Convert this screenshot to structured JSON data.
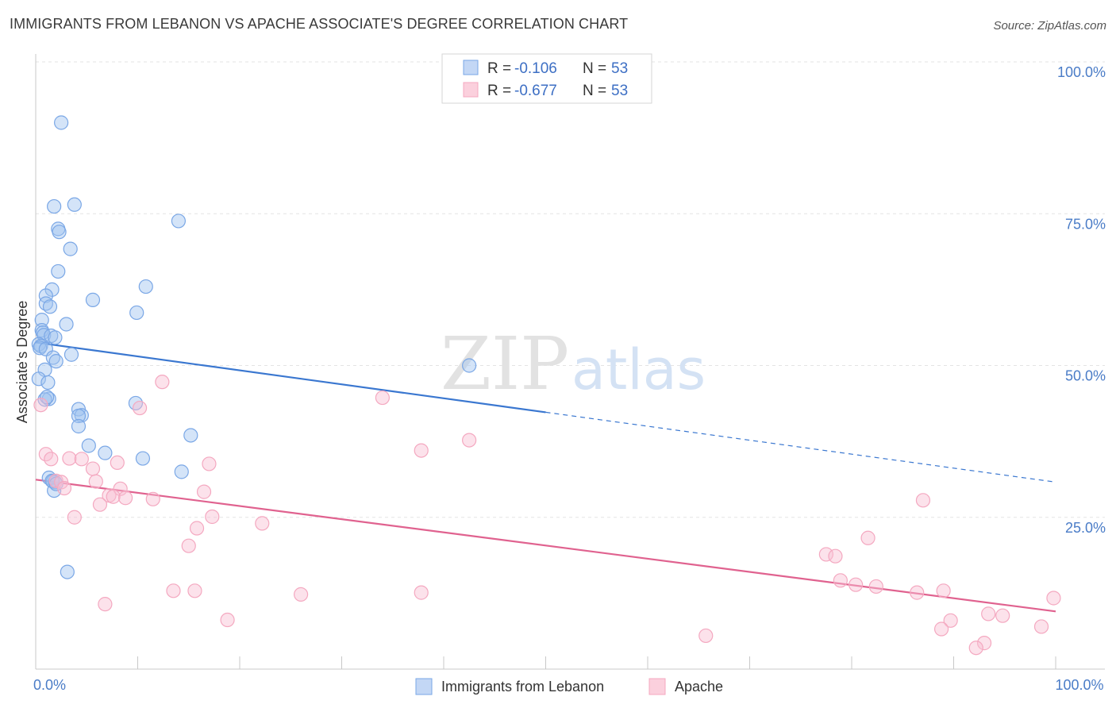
{
  "title": "IMMIGRANTS FROM LEBANON VS APACHE ASSOCIATE'S DEGREE CORRELATION CHART",
  "source": "Source: ZipAtlas.com",
  "watermark": {
    "zip": "ZIP",
    "atlas": "atlas"
  },
  "chart_data": {
    "type": "scatter",
    "ylabel": "Associate's Degree",
    "xlim": [
      0,
      100
    ],
    "ylim": [
      0,
      100
    ],
    "x_ticks": [
      {
        "value": 0,
        "label": "0.0%"
      },
      {
        "value": 100,
        "label": "100.0%"
      }
    ],
    "y_ticks": [
      {
        "value": 25,
        "label": "25.0%"
      },
      {
        "value": 50,
        "label": "50.0%"
      },
      {
        "value": 75,
        "label": "75.0%"
      },
      {
        "value": 100,
        "label": "100.0%"
      }
    ],
    "grid": true,
    "legend": {
      "placement": "top-center",
      "entries": [
        {
          "r_label": "R = ",
          "r_value": "-0.106",
          "n_label": "N = ",
          "n_value": "53"
        },
        {
          "r_label": "R = ",
          "r_value": "-0.677",
          "n_label": "N = ",
          "n_value": "53"
        }
      ]
    },
    "series": [
      {
        "name": "Immigrants from Lebanon",
        "color": "#7aa7e6",
        "line_color": "#3a77d0",
        "trend": {
          "x0": 0,
          "y0": 53.8,
          "x1": 100,
          "y1": 30.8,
          "solid_until": 50
        },
        "points": [
          [
            2.5,
            90.0
          ],
          [
            3.8,
            76.5
          ],
          [
            1.8,
            76.2
          ],
          [
            2.2,
            72.5
          ],
          [
            2.3,
            72.0
          ],
          [
            14.0,
            73.8
          ],
          [
            3.4,
            69.2
          ],
          [
            2.2,
            65.5
          ],
          [
            10.8,
            63.0
          ],
          [
            1.6,
            62.5
          ],
          [
            1.0,
            61.5
          ],
          [
            5.6,
            60.8
          ],
          [
            1.0,
            60.2
          ],
          [
            1.4,
            59.7
          ],
          [
            9.9,
            58.7
          ],
          [
            0.6,
            57.5
          ],
          [
            3.0,
            56.8
          ],
          [
            0.6,
            55.8
          ],
          [
            0.7,
            55.4
          ],
          [
            0.8,
            55.0
          ],
          [
            1.5,
            54.9
          ],
          [
            1.9,
            54.6
          ],
          [
            0.3,
            53.5
          ],
          [
            0.5,
            53.2
          ],
          [
            0.4,
            52.9
          ],
          [
            1.0,
            52.7
          ],
          [
            3.5,
            51.8
          ],
          [
            1.7,
            51.3
          ],
          [
            2.0,
            50.7
          ],
          [
            42.5,
            50.0
          ],
          [
            0.9,
            49.3
          ],
          [
            0.3,
            47.8
          ],
          [
            1.2,
            47.2
          ],
          [
            1.3,
            44.5
          ],
          [
            0.9,
            44.4
          ],
          [
            9.8,
            43.8
          ],
          [
            4.2,
            42.8
          ],
          [
            4.5,
            41.8
          ],
          [
            4.2,
            41.7
          ],
          [
            4.2,
            40.0
          ],
          [
            15.2,
            38.5
          ],
          [
            5.2,
            36.8
          ],
          [
            6.8,
            35.6
          ],
          [
            10.5,
            34.7
          ],
          [
            14.3,
            32.5
          ],
          [
            1.3,
            31.5
          ],
          [
            1.7,
            30.9
          ],
          [
            1.9,
            30.8
          ],
          [
            1.8,
            29.4
          ],
          [
            3.1,
            16.0
          ],
          [
            1.6,
            31.0
          ],
          [
            2.0,
            30.5
          ],
          [
            1.1,
            44.8
          ]
        ]
      },
      {
        "name": "Apache",
        "color": "#f4a8c0",
        "line_color": "#e0628f",
        "trend": {
          "x0": 0,
          "y0": 31.2,
          "x1": 100,
          "y1": 9.5,
          "solid_until": 100
        },
        "points": [
          [
            0.5,
            43.5
          ],
          [
            12.4,
            47.3
          ],
          [
            34.0,
            44.7
          ],
          [
            10.2,
            43.0
          ],
          [
            42.5,
            37.7
          ],
          [
            37.8,
            36.0
          ],
          [
            1.0,
            35.4
          ],
          [
            1.5,
            34.6
          ],
          [
            3.3,
            34.7
          ],
          [
            4.5,
            34.6
          ],
          [
            8.0,
            34.0
          ],
          [
            17.0,
            33.8
          ],
          [
            5.6,
            33.0
          ],
          [
            2.0,
            31.0
          ],
          [
            2.5,
            30.8
          ],
          [
            5.9,
            30.9
          ],
          [
            2.8,
            29.8
          ],
          [
            8.3,
            29.7
          ],
          [
            16.5,
            29.2
          ],
          [
            7.2,
            28.6
          ],
          [
            7.6,
            28.4
          ],
          [
            8.8,
            28.2
          ],
          [
            11.5,
            28.0
          ],
          [
            6.3,
            27.1
          ],
          [
            87.0,
            27.8
          ],
          [
            3.8,
            25.0
          ],
          [
            17.3,
            25.1
          ],
          [
            22.2,
            24.0
          ],
          [
            15.8,
            23.2
          ],
          [
            81.6,
            21.6
          ],
          [
            15.0,
            20.3
          ],
          [
            77.5,
            18.9
          ],
          [
            78.4,
            18.6
          ],
          [
            78.9,
            14.6
          ],
          [
            80.4,
            13.9
          ],
          [
            82.4,
            13.6
          ],
          [
            13.5,
            12.9
          ],
          [
            15.6,
            12.9
          ],
          [
            26.0,
            12.3
          ],
          [
            37.8,
            12.6
          ],
          [
            86.4,
            12.6
          ],
          [
            89.0,
            12.9
          ],
          [
            99.8,
            11.7
          ],
          [
            6.8,
            10.7
          ],
          [
            93.4,
            9.1
          ],
          [
            94.8,
            8.8
          ],
          [
            18.8,
            8.1
          ],
          [
            89.7,
            8.0
          ],
          [
            88.8,
            6.6
          ],
          [
            98.6,
            7.0
          ],
          [
            65.7,
            5.5
          ],
          [
            93.0,
            4.3
          ],
          [
            92.2,
            3.5
          ]
        ]
      }
    ]
  }
}
